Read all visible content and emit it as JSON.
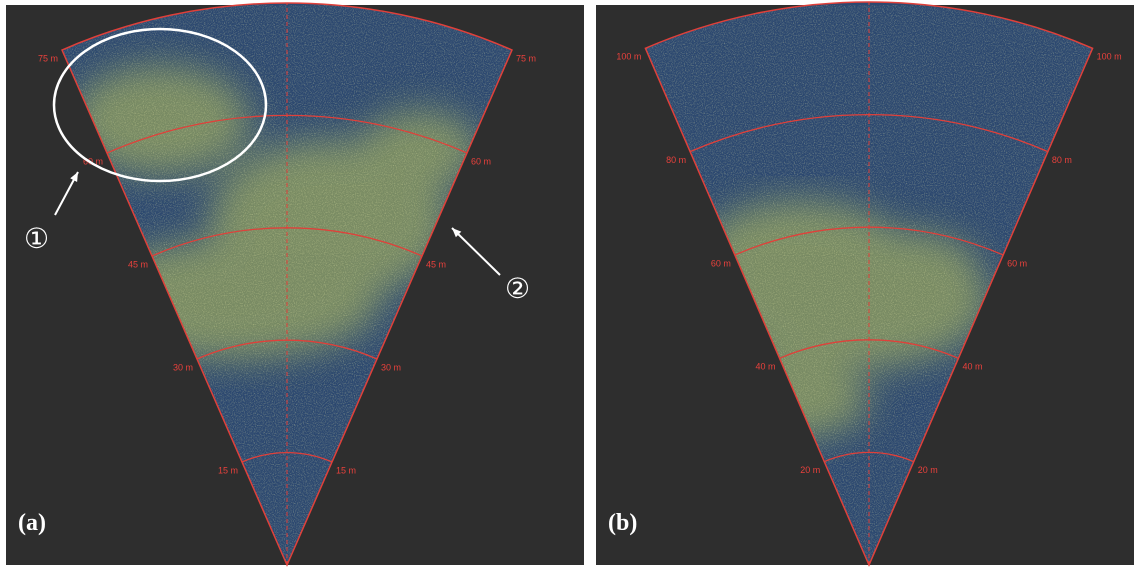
{
  "panels": [
    {
      "label": "(a)",
      "ranges": [
        "15 m",
        "30 m",
        "45 m",
        "60 m",
        "75 m"
      ]
    },
    {
      "label": "(b)",
      "ranges": [
        "20 m",
        "40 m",
        "60 m",
        "80 m",
        "100 m"
      ]
    }
  ],
  "annotations": [
    "①",
    "②"
  ]
}
